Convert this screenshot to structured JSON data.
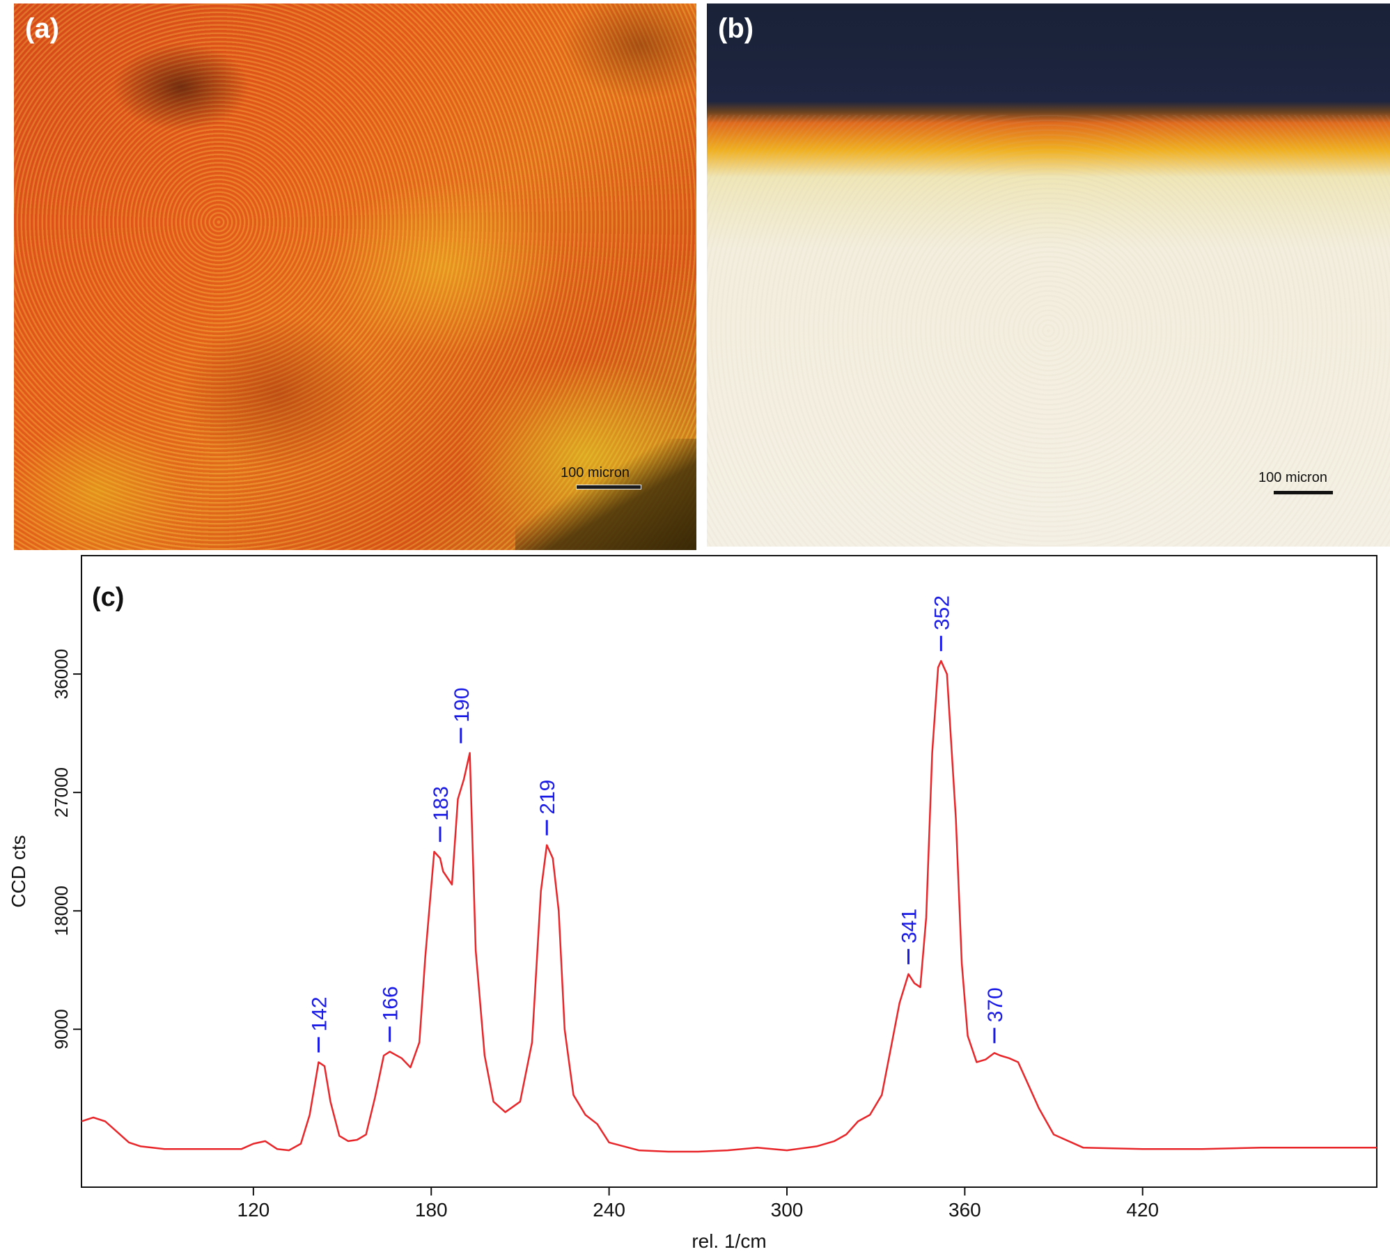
{
  "panels": {
    "a": {
      "label": "(a)",
      "scale_label": "100 micron"
    },
    "b": {
      "label": "(b)",
      "scale_label": "100 micron"
    }
  },
  "chart_data": {
    "type": "line",
    "panel_label": "(c)",
    "xlabel": "rel. 1/cm",
    "ylabel": "CCD cts",
    "xlim": [
      62,
      499
    ],
    "ylim": [
      -3000,
      45000
    ],
    "xticks": [
      120,
      180,
      240,
      300,
      360,
      420
    ],
    "yticks": [
      9000,
      18000,
      27000,
      36000
    ],
    "grid": false,
    "line_color": "#e8262a",
    "annotation_color": "#1a1ae6",
    "series": [
      {
        "x": [
          62,
          66,
          70,
          74,
          78,
          82,
          90,
          100,
          110,
          116,
          120,
          124,
          128,
          132,
          136,
          139,
          142,
          144,
          146,
          149,
          152,
          155,
          158,
          161,
          164,
          166,
          170,
          173,
          176,
          178,
          181,
          183,
          184,
          187,
          189,
          191,
          193,
          195,
          198,
          201,
          205,
          210,
          214,
          217,
          219,
          221,
          223,
          225,
          228,
          232,
          236,
          240,
          250,
          260,
          270,
          280,
          290,
          300,
          310,
          316,
          320,
          324,
          328,
          332,
          335,
          338,
          341,
          343,
          345,
          347,
          349,
          351,
          352,
          354,
          357,
          359,
          361,
          364,
          367,
          370,
          372,
          375,
          378,
          381,
          385,
          390,
          400,
          420,
          440,
          460,
          480,
          499
        ],
        "y": [
          2000,
          2300,
          2000,
          1200,
          400,
          100,
          -100,
          -100,
          -100,
          -100,
          300,
          500,
          -100,
          -200,
          300,
          2500,
          6500,
          6200,
          3500,
          900,
          500,
          600,
          1000,
          3800,
          7000,
          7300,
          6800,
          6100,
          8000,
          14500,
          22500,
          22000,
          21000,
          20000,
          26500,
          28000,
          30000,
          15000,
          7000,
          3500,
          2700,
          3500,
          8000,
          19500,
          23000,
          22000,
          18000,
          9000,
          4000,
          2500,
          1800,
          400,
          -200,
          -300,
          -300,
          -200,
          0,
          -200,
          100,
          500,
          1000,
          2000,
          2500,
          4000,
          7500,
          11000,
          13200,
          12500,
          12200,
          17500,
          30000,
          36500,
          37000,
          36000,
          25000,
          14000,
          8500,
          6500,
          6700,
          7200,
          7000,
          6800,
          6500,
          5000,
          3000,
          1000,
          0,
          -100,
          -100,
          0,
          0,
          0
        ],
        "peak_labels": [
          {
            "x": 142,
            "y": 6500,
            "label": "142"
          },
          {
            "x": 166,
            "y": 7300,
            "label": "166"
          },
          {
            "x": 183,
            "y": 22500,
            "label": "183"
          },
          {
            "x": 190,
            "y": 30000,
            "label": "190"
          },
          {
            "x": 219,
            "y": 23000,
            "label": "219"
          },
          {
            "x": 341,
            "y": 13200,
            "label": "341"
          },
          {
            "x": 352,
            "y": 37000,
            "label": "352"
          },
          {
            "x": 370,
            "y": 7200,
            "label": "370"
          }
        ]
      }
    ]
  }
}
